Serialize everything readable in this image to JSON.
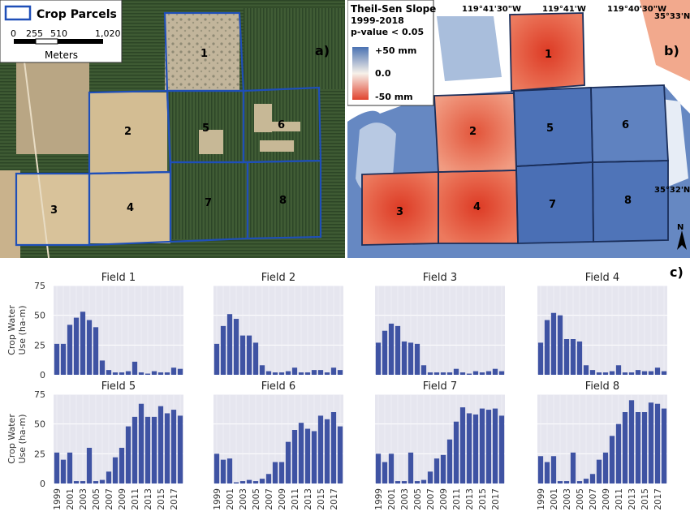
{
  "map_a": {
    "panel_label": "a)",
    "legend_title": "Crop Parcels",
    "scale_ticks": [
      "0",
      "255",
      "510",
      "1,020"
    ],
    "scale_unit": "Meters",
    "parcel_labels": [
      "1",
      "2",
      "3",
      "4",
      "5",
      "6",
      "7",
      "8"
    ],
    "colors": {
      "parcel_outline": "#1f4fb8",
      "bare_soil": "#d3bd93",
      "orchard": "#3e5a33"
    }
  },
  "map_b": {
    "panel_label": "b)",
    "legend": {
      "title_lines": [
        "Theil-Sen Slope",
        "1999-2018",
        "p-value < 0.05"
      ],
      "max_label": "+50 mm",
      "mid_label": "0.0",
      "min_label": "-50 mm"
    },
    "lon_labels": [
      "119°41'30\"W",
      "119°41'W",
      "119°40'30\"W"
    ],
    "lat_labels": [
      "35°33'N",
      "35°32'N"
    ],
    "north_arrow": "N",
    "parcel_labels": [
      "1",
      "2",
      "3",
      "4",
      "5",
      "6",
      "7",
      "8"
    ],
    "colors": {
      "positive": "#4a72b2",
      "negative": "#e0432e",
      "neutral": "#f7f1ea",
      "parcel_outline": "#1a2e5a"
    }
  },
  "panel_c_label": "c)",
  "chart_data": {
    "type": "bar",
    "ylabel_lines": [
      "Crop Water",
      "Use (ha-m)"
    ],
    "x_tick_labels": [
      "1999",
      "2001",
      "2003",
      "2005",
      "2007",
      "2009",
      "2011",
      "2013",
      "2015",
      "2017"
    ],
    "years": [
      1999,
      2000,
      2001,
      2002,
      2003,
      2004,
      2005,
      2006,
      2007,
      2008,
      2009,
      2010,
      2011,
      2012,
      2013,
      2014,
      2015,
      2016,
      2017,
      2018
    ],
    "ylim": [
      0,
      75
    ],
    "yticks": [
      0,
      25,
      50,
      75
    ],
    "bar_color": "#3f53a3",
    "facet_bg": "#e6e6ef",
    "grid": true,
    "fields": [
      {
        "name": "Field 1",
        "values": [
          26,
          26,
          42,
          48,
          53,
          46,
          40,
          12,
          4,
          2,
          2,
          3,
          11,
          2,
          1,
          3,
          2,
          2,
          6,
          5
        ]
      },
      {
        "name": "Field 2",
        "values": [
          26,
          41,
          51,
          47,
          33,
          33,
          27,
          8,
          3,
          2,
          2,
          3,
          6,
          2,
          2,
          4,
          4,
          2,
          6,
          4
        ]
      },
      {
        "name": "Field 3",
        "values": [
          27,
          37,
          43,
          41,
          28,
          27,
          26,
          8,
          2,
          2,
          2,
          2,
          5,
          2,
          1,
          3,
          2,
          3,
          5,
          3
        ]
      },
      {
        "name": "Field 4",
        "values": [
          27,
          46,
          52,
          50,
          30,
          30,
          28,
          8,
          4,
          2,
          2,
          3,
          8,
          2,
          2,
          4,
          3,
          3,
          6,
          3
        ]
      },
      {
        "name": "Field 5",
        "values": [
          26,
          20,
          26,
          2,
          2,
          30,
          2,
          3,
          10,
          22,
          30,
          48,
          56,
          67,
          56,
          56,
          65,
          59,
          62,
          57
        ]
      },
      {
        "name": "Field 6",
        "values": [
          25,
          20,
          21,
          1,
          2,
          3,
          2,
          4,
          8,
          18,
          18,
          35,
          45,
          51,
          46,
          44,
          57,
          54,
          60,
          48
        ]
      },
      {
        "name": "Field 7",
        "values": [
          25,
          18,
          25,
          2,
          2,
          26,
          2,
          3,
          10,
          21,
          24,
          37,
          52,
          64,
          59,
          58,
          63,
          62,
          63,
          57
        ]
      },
      {
        "name": "Field 8",
        "values": [
          23,
          18,
          23,
          2,
          2,
          26,
          2,
          4,
          8,
          20,
          26,
          40,
          50,
          60,
          70,
          60,
          60,
          68,
          67,
          63
        ]
      }
    ]
  }
}
